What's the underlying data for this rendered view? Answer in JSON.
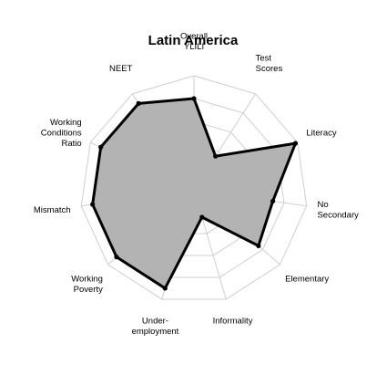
{
  "chart_data": {
    "type": "radar",
    "title": "Latin America",
    "categories": [
      [
        "Overall",
        "YLILI"
      ],
      [
        "Test",
        "Scores"
      ],
      [
        "Literacy"
      ],
      [
        "No",
        "Secondary"
      ],
      [
        "Elementary"
      ],
      [
        "Informality"
      ],
      [
        "Under-",
        "employment"
      ],
      [
        "Working",
        "Poverty"
      ],
      [
        "Mismatch"
      ],
      [
        "Working",
        "Conditions",
        "Ratio"
      ],
      [
        "NEET"
      ]
    ],
    "series": [
      {
        "values": [
          0.8,
          0.35,
          0.98,
          0.7,
          0.75,
          0.25,
          0.9,
          0.9,
          0.9,
          0.9,
          0.9
        ]
      }
    ],
    "rlim": [
      0,
      1
    ],
    "rings": 5,
    "grid": true,
    "colors": {
      "fill": "#b3b3b3",
      "line": "#000000",
      "ring": "#cfcfcf",
      "inner_ring": "#9a9a9a"
    }
  }
}
